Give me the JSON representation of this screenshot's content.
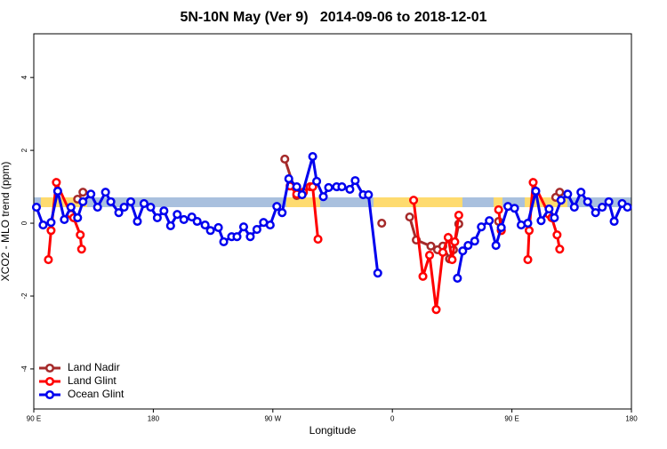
{
  "chart_data": {
    "type": "line",
    "title": "5N-10N May (Ver 9)   2014-09-06 to 2018-12-01",
    "x_label": "Longitude",
    "y_label": "XCO2 - MLO trend (ppm)",
    "xlim": [
      90,
      540
    ],
    "ylim": [
      -5.1,
      5.2
    ],
    "xticks": [
      {
        "value": 90,
        "label": "90 E"
      },
      180,
      {
        "value": 270,
        "label": "90 W"
      },
      {
        "value": 360,
        "label": "0"
      },
      {
        "value": 450,
        "label": "90 E"
      },
      {
        "value": 540,
        "label": "180"
      }
    ],
    "yticks": [
      -4,
      -2,
      0,
      2,
      4
    ],
    "legend": "bottomleft",
    "series": [
      {
        "name": "Land Nadir",
        "color": "#a52a2a",
        "x": [
          123,
          127,
          null,
          279,
          288,
          293,
          null,
          352,
          null,
          373,
          378,
          389,
          394,
          398,
          403,
          406,
          410,
          null,
          440,
          442,
          null,
          483,
          486
        ],
        "values": [
          0.66,
          0.85,
          null,
          1.76,
          0.76,
          0.85,
          null,
          0.0,
          null,
          0.17,
          -0.46,
          -0.63,
          -0.73,
          -0.63,
          -0.98,
          -0.73,
          -0.02,
          null,
          0.05,
          -0.2,
          null,
          0.71,
          0.85
        ]
      },
      {
        "name": "Land Glint",
        "color": "#ff0000",
        "x": [
          101,
          103,
          107,
          118,
          120,
          125,
          126,
          null,
          283,
          288,
          293,
          298,
          300,
          304,
          null,
          376,
          383,
          388,
          393,
          398,
          402,
          405,
          407,
          410,
          null,
          440,
          442,
          null,
          462,
          463,
          466,
          478,
          480,
          484,
          486
        ],
        "values": [
          -1.0,
          -0.2,
          1.12,
          0.24,
          0.15,
          -0.32,
          -0.71,
          null,
          1.02,
          0.8,
          0.85,
          1.0,
          1.0,
          -0.44,
          null,
          0.63,
          -1.46,
          -0.88,
          -2.37,
          -0.8,
          -0.39,
          -1.0,
          -0.51,
          0.22,
          null,
          0.37,
          -0.2,
          null,
          -1.0,
          -0.2,
          1.12,
          0.24,
          0.15,
          -0.32,
          -0.71
        ]
      },
      {
        "name": "Ocean Glint",
        "color": "#0000ee",
        "x": [
          92,
          97,
          103,
          108,
          113,
          118,
          123,
          127,
          133,
          138,
          144,
          148,
          154,
          158,
          163,
          168,
          173,
          178,
          183,
          188,
          193,
          198,
          203,
          209,
          213,
          219,
          223,
          229,
          233,
          239,
          243,
          248,
          253,
          258,
          263,
          268,
          273,
          277,
          282,
          288,
          292,
          300,
          303,
          308,
          312,
          318,
          322,
          328,
          332,
          338,
          342,
          349,
          null,
          409,
          413,
          417,
          422,
          427,
          433,
          438,
          442,
          447,
          452,
          457,
          462,
          468,
          472,
          478,
          482,
          487,
          492,
          497,
          502,
          507,
          513,
          518,
          523,
          527,
          533,
          537
        ],
        "values": [
          0.44,
          -0.05,
          0.02,
          0.88,
          0.1,
          0.44,
          0.15,
          0.59,
          0.8,
          0.44,
          0.85,
          0.59,
          0.29,
          0.44,
          0.59,
          0.05,
          0.54,
          0.44,
          0.15,
          0.34,
          -0.07,
          0.24,
          0.1,
          0.17,
          0.05,
          -0.05,
          -0.2,
          -0.12,
          -0.51,
          -0.37,
          -0.37,
          -0.1,
          -0.37,
          -0.17,
          0.02,
          -0.05,
          0.46,
          0.29,
          1.22,
          1.0,
          0.78,
          1.83,
          1.15,
          0.73,
          0.98,
          1.0,
          1.0,
          0.93,
          1.17,
          0.78,
          0.78,
          -1.37,
          null,
          -1.51,
          -0.76,
          -0.61,
          -0.49,
          -0.1,
          0.07,
          -0.61,
          -0.12,
          0.46,
          0.41,
          -0.05,
          0.0,
          0.88,
          0.07,
          0.39,
          0.15,
          0.63,
          0.8,
          0.44,
          0.85,
          0.59,
          0.29,
          0.44,
          0.59,
          0.05,
          0.54,
          0.44
        ]
      }
    ]
  }
}
